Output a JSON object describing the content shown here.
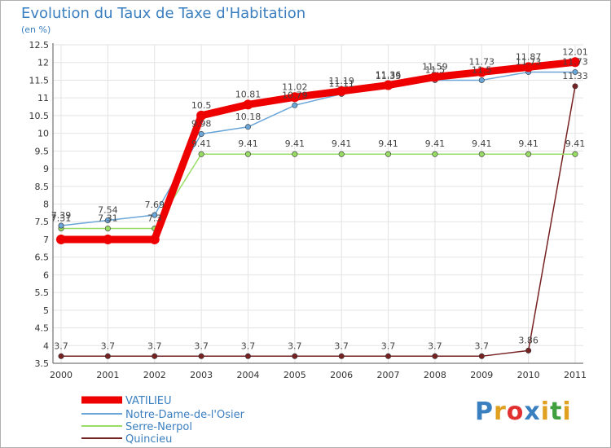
{
  "title": "Evolution du Taux de Taxe d'Habitation",
  "unit_label": "(en %)",
  "brand": {
    "name": "Proxiti",
    "colors": [
      "#3a7fc0",
      "#e0a020",
      "#e03030",
      "#3a7fc0",
      "#e0a020",
      "#40a040",
      "#e0a020"
    ]
  },
  "chart_data": {
    "type": "line",
    "title": "Evolution du Taux de Taxe d'Habitation",
    "ylabel": "(en %)",
    "xlabel": "",
    "x": [
      "2000",
      "2001",
      "2002",
      "2003",
      "2004",
      "2005",
      "2006",
      "2007",
      "2008",
      "2009",
      "2010",
      "2011"
    ],
    "ylim": [
      3.5,
      12.5
    ],
    "yticks": [
      "3.5",
      "4",
      "4.5",
      "5",
      "5.5",
      "6",
      "6.5",
      "7",
      "7.5",
      "8",
      "8.5",
      "9",
      "9.5",
      "10",
      "10.5",
      "11",
      "11.5",
      "12",
      "12.5"
    ],
    "grid": true,
    "legend": "bottom-left",
    "series": [
      {
        "name": "VATILIEU",
        "color": "#ee0000",
        "values": [
          7.0,
          7.0,
          7.0,
          10.5,
          10.81,
          11.02,
          11.19,
          11.36,
          11.59,
          11.73,
          11.87,
          12.01
        ],
        "labels": [
          "",
          "",
          "",
          "10.5",
          "10.81",
          "11.02",
          "11.19",
          "11.36",
          "11.59",
          "11.73",
          "11.87",
          "12.01"
        ]
      },
      {
        "name": "Notre-Dame-de-l'Osier",
        "color": "#6aa6d8",
        "values": [
          7.39,
          7.54,
          7.69,
          9.98,
          10.18,
          10.79,
          11.11,
          11.33,
          11.5,
          11.5,
          11.73,
          11.73
        ],
        "labels": [
          "7.39",
          "7.54",
          "7.69",
          "9.98",
          "10.18",
          "10.79",
          "11.11",
          "11.33",
          "11.5",
          "11.5",
          "11.73",
          "11.73"
        ]
      },
      {
        "name": "Serre-Nerpol",
        "color": "#99dd66",
        "values": [
          7.31,
          7.31,
          7.31,
          9.41,
          9.41,
          9.41,
          9.41,
          9.41,
          9.41,
          9.41,
          9.41,
          9.41
        ],
        "labels": [
          "7.31",
          "7.31",
          "7.3",
          "9.41",
          "9.41",
          "9.41",
          "9.41",
          "9.41",
          "9.41",
          "9.41",
          "9.41",
          "9.41"
        ]
      },
      {
        "name": "Quincieu",
        "color": "#772222",
        "values": [
          3.7,
          3.7,
          3.7,
          3.7,
          3.7,
          3.7,
          3.7,
          3.7,
          3.7,
          3.7,
          3.86,
          11.33
        ],
        "labels": [
          "3.7",
          "3.7",
          "3.7",
          "3.7",
          "3.7",
          "3.7",
          "3.7",
          "3.7",
          "3.7",
          "3.7",
          "3.86",
          "11.33"
        ]
      }
    ]
  }
}
